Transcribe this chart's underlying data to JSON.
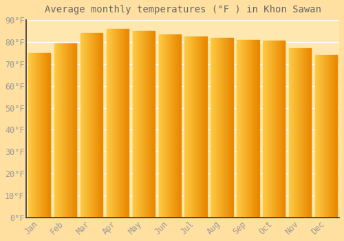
{
  "title": "Average monthly temperatures (°F ) in Khon Sawan",
  "months": [
    "Jan",
    "Feb",
    "Mar",
    "Apr",
    "May",
    "Jun",
    "Jul",
    "Aug",
    "Sep",
    "Oct",
    "Nov",
    "Dec"
  ],
  "values": [
    75,
    79.5,
    84,
    86,
    85,
    83.5,
    82.5,
    82,
    81,
    80.5,
    77,
    74
  ],
  "bar_color_left": "#FFCC44",
  "bar_color_right": "#E88800",
  "background_color": "#FFE0A0",
  "plot_bg_color": "#FFE8B0",
  "grid_color": "#FFFFFF",
  "text_color": "#999999",
  "title_color": "#666666",
  "spine_color": "#333333",
  "ylim": [
    0,
    90
  ],
  "yticks": [
    0,
    10,
    20,
    30,
    40,
    50,
    60,
    70,
    80,
    90
  ],
  "ytick_labels": [
    "0°F",
    "10°F",
    "20°F",
    "30°F",
    "40°F",
    "50°F",
    "60°F",
    "70°F",
    "80°F",
    "90°F"
  ],
  "title_fontsize": 10,
  "tick_fontsize": 8.5,
  "font_family": "monospace",
  "bar_width": 0.85
}
